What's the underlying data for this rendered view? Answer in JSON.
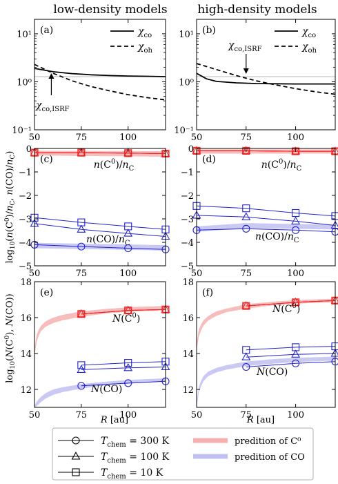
{
  "column_titles": [
    "low-density models",
    "high-density models"
  ],
  "legend": {
    "entries": [
      {
        "label": "T_chem = 300 K",
        "marker": "circle"
      },
      {
        "label": "T_chem = 100 K",
        "marker": "triangle"
      },
      {
        "label": "T_chem = 10 K",
        "marker": "square"
      },
      {
        "label": "predition of C⁰",
        "color": "#f4a7a7"
      },
      {
        "label": "predition of CO",
        "color": "#b9b9f0"
      }
    ]
  },
  "colors": {
    "red": "#ee2222",
    "blue": "#2222cc",
    "pred_red": "#f6b0b0",
    "pred_blue": "#c0c0f2"
  },
  "chart_data": [
    {
      "panel": "(a)",
      "type": "line",
      "yscale": "log",
      "xlim": [
        50,
        120
      ],
      "ylim": [
        0.1,
        20
      ],
      "xticks": [
        50,
        75,
        100
      ],
      "yticks": [
        0.1,
        1,
        10
      ],
      "ytick_labels": [
        "10⁻¹",
        "10⁰",
        "10¹"
      ],
      "series": [
        {
          "name": "χco",
          "style": "solid",
          "x": [
            50,
            60,
            70,
            80,
            90,
            100,
            110,
            120
          ],
          "y": [
            1.9,
            1.62,
            1.48,
            1.4,
            1.35,
            1.32,
            1.3,
            1.28
          ]
        },
        {
          "name": "χoh",
          "style": "dashed",
          "x": [
            50,
            60,
            70,
            80,
            90,
            100,
            110,
            120
          ],
          "y": [
            2.3,
            1.5,
            1.05,
            0.8,
            0.65,
            0.54,
            0.47,
            0.42
          ]
        }
      ],
      "reference_line": {
        "y": 1.28
      },
      "annotation": {
        "text": "χco,ISRF",
        "x": 59
      }
    },
    {
      "panel": "(b)",
      "type": "line",
      "yscale": "log",
      "xlim": [
        50,
        120
      ],
      "ylim": [
        0.1,
        20
      ],
      "xticks": [
        50,
        75,
        100
      ],
      "yticks": [
        0.1,
        1,
        10
      ],
      "ytick_labels": [
        "10⁻¹",
        "10⁰",
        "10¹"
      ],
      "series": [
        {
          "name": "χco",
          "style": "solid",
          "x": [
            50,
            55,
            60,
            70,
            80,
            90,
            100,
            110,
            120
          ],
          "y": [
            1.5,
            1.15,
            1.02,
            0.95,
            0.92,
            0.91,
            0.9,
            0.9,
            0.9
          ]
        },
        {
          "name": "χoh",
          "style": "dashed",
          "x": [
            50,
            60,
            70,
            80,
            90,
            100,
            110,
            120
          ],
          "y": [
            2.4,
            1.8,
            1.35,
            1.05,
            0.86,
            0.72,
            0.62,
            0.55
          ]
        }
      ],
      "reference_line": {
        "y": 1.28
      },
      "annotation": {
        "text": "χco,ISRF",
        "x": 75
      }
    },
    {
      "panel": "(c)",
      "type": "line",
      "xlim": [
        50,
        120
      ],
      "ylim": [
        -5,
        0
      ],
      "xticks": [
        50,
        75,
        100
      ],
      "yticks": [
        -5,
        -4,
        -3,
        -2,
        -1,
        0
      ],
      "ylabel": "log10(n(C⁰)/nC, n(CO)/nC)",
      "annotations": [
        "n(C⁰)/nC",
        "n(CO)/nC"
      ],
      "bands": [
        {
          "color": "red",
          "x": [
            50,
            120
          ],
          "lo": [
            -0.3,
            -0.35
          ],
          "hi": [
            -0.1,
            -0.12
          ]
        },
        {
          "color": "blue",
          "x": [
            50,
            120
          ],
          "lo": [
            -4.25,
            -4.35
          ],
          "hi": [
            -4.02,
            -4.12
          ]
        }
      ],
      "series": [
        {
          "name": "C⁰ 300 K",
          "color": "red",
          "marker": "circle",
          "x": [
            50,
            75,
            100,
            120
          ],
          "y": [
            -0.18,
            -0.18,
            -0.2,
            -0.22
          ]
        },
        {
          "name": "C⁰ 100 K",
          "color": "red",
          "marker": "triangle",
          "x": [
            50,
            75,
            100,
            120
          ],
          "y": [
            -0.18,
            -0.18,
            -0.2,
            -0.22
          ]
        },
        {
          "name": "C⁰ 10 K",
          "color": "red",
          "marker": "square",
          "x": [
            50,
            75,
            100,
            120
          ],
          "y": [
            -0.18,
            -0.18,
            -0.2,
            -0.22
          ]
        },
        {
          "name": "CO 300 K",
          "color": "blue",
          "marker": "circle",
          "x": [
            50,
            75,
            100,
            120
          ],
          "y": [
            -4.1,
            -4.18,
            -4.25,
            -4.3
          ]
        },
        {
          "name": "CO 100 K",
          "color": "blue",
          "marker": "triangle",
          "x": [
            50,
            75,
            100,
            120
          ],
          "y": [
            -3.2,
            -3.45,
            -3.62,
            -3.75
          ]
        },
        {
          "name": "CO 10 K",
          "color": "blue",
          "marker": "square",
          "x": [
            50,
            75,
            100,
            120
          ],
          "y": [
            -2.95,
            -3.15,
            -3.32,
            -3.45
          ]
        }
      ]
    },
    {
      "panel": "(d)",
      "type": "line",
      "xlim": [
        50,
        120
      ],
      "ylim": [
        -5,
        0
      ],
      "xticks": [
        50,
        75,
        100
      ],
      "yticks": [
        -5,
        -4,
        -3,
        -2,
        -1,
        0
      ],
      "annotations": [
        "n(C⁰)/nC",
        "n(CO)/nC"
      ],
      "bands": [
        {
          "color": "red",
          "x": [
            50,
            120
          ],
          "lo": [
            -0.22,
            -0.22
          ],
          "hi": [
            -0.04,
            -0.04
          ]
        },
        {
          "color": "blue",
          "x": [
            50,
            75,
            120
          ],
          "lo": [
            -3.55,
            -3.4,
            -3.45
          ],
          "hi": [
            -3.32,
            -3.18,
            -3.25
          ]
        }
      ],
      "series": [
        {
          "name": "C⁰ 300 K",
          "color": "red",
          "marker": "circle",
          "x": [
            50,
            75,
            100,
            120
          ],
          "y": [
            -0.1,
            -0.1,
            -0.12,
            -0.12
          ]
        },
        {
          "name": "C⁰ 100 K",
          "color": "red",
          "marker": "triangle",
          "x": [
            50,
            75,
            100,
            120
          ],
          "y": [
            -0.1,
            -0.1,
            -0.12,
            -0.12
          ]
        },
        {
          "name": "C⁰ 10 K",
          "color": "red",
          "marker": "square",
          "x": [
            50,
            75,
            100,
            120
          ],
          "y": [
            -0.1,
            -0.1,
            -0.12,
            -0.12
          ]
        },
        {
          "name": "CO 300 K",
          "color": "blue",
          "marker": "circle",
          "x": [
            50,
            75,
            100,
            120
          ],
          "y": [
            -3.48,
            -3.42,
            -3.48,
            -3.55
          ]
        },
        {
          "name": "CO 100 K",
          "color": "blue",
          "marker": "triangle",
          "x": [
            50,
            75,
            100,
            120
          ],
          "y": [
            -2.85,
            -2.92,
            -3.1,
            -3.28
          ]
        },
        {
          "name": "CO 10 K",
          "color": "blue",
          "marker": "square",
          "x": [
            50,
            75,
            100,
            120
          ],
          "y": [
            -2.45,
            -2.55,
            -2.75,
            -2.88
          ]
        }
      ]
    },
    {
      "panel": "(e)",
      "type": "line",
      "xlim": [
        50,
        120
      ],
      "ylim": [
        11,
        18
      ],
      "xticks": [
        50,
        75,
        100
      ],
      "yticks": [
        12,
        14,
        16,
        18
      ],
      "xlabel": "R [au]",
      "ylabel": "log10(N(C⁰), N(CO))",
      "annotations": [
        "N(C⁰)",
        "N(CO)"
      ],
      "bands": [
        {
          "color": "red",
          "x": [
            50,
            51,
            53,
            56,
            60,
            65,
            75,
            90,
            105,
            120
          ],
          "lo": [
            13.9,
            14.6,
            15.2,
            15.5,
            15.7,
            15.85,
            16.05,
            16.25,
            16.35,
            16.4
          ],
          "hi": [
            14.3,
            15.0,
            15.5,
            15.8,
            16.0,
            16.15,
            16.35,
            16.5,
            16.6,
            16.65
          ]
        },
        {
          "color": "blue",
          "x": [
            50,
            51,
            53,
            56,
            60,
            65,
            75,
            90,
            105,
            120
          ],
          "lo": [
            11.0,
            11.05,
            11.25,
            11.5,
            11.7,
            11.85,
            12.05,
            12.25,
            12.35,
            12.45
          ],
          "hi": [
            11.1,
            11.3,
            11.55,
            11.8,
            12.0,
            12.12,
            12.3,
            12.45,
            12.55,
            12.62
          ]
        }
      ],
      "series": [
        {
          "name": "C⁰ 300 K",
          "color": "red",
          "marker": "circle",
          "x": [
            75,
            100,
            120
          ],
          "y": [
            16.2,
            16.4,
            16.45
          ]
        },
        {
          "name": "C⁰ 100 K",
          "color": "red",
          "marker": "triangle",
          "x": [
            75,
            100,
            120
          ],
          "y": [
            16.2,
            16.4,
            16.45
          ]
        },
        {
          "name": "C⁰ 10 K",
          "color": "red",
          "marker": "square",
          "x": [
            75,
            100,
            120
          ],
          "y": [
            16.2,
            16.4,
            16.45
          ]
        },
        {
          "name": "CO 300 K",
          "color": "blue",
          "marker": "circle",
          "x": [
            75,
            100,
            120
          ],
          "y": [
            12.2,
            12.35,
            12.45
          ]
        },
        {
          "name": "CO 100 K",
          "color": "blue",
          "marker": "triangle",
          "x": [
            75,
            100,
            120
          ],
          "y": [
            13.1,
            13.2,
            13.25
          ]
        },
        {
          "name": "CO 10 K",
          "color": "blue",
          "marker": "square",
          "x": [
            75,
            100,
            120
          ],
          "y": [
            13.35,
            13.48,
            13.55
          ]
        }
      ]
    },
    {
      "panel": "(f)",
      "type": "line",
      "xlim": [
        50,
        120
      ],
      "ylim": [
        11,
        18
      ],
      "xticks": [
        50,
        75,
        100
      ],
      "yticks": [
        12,
        14,
        16,
        18
      ],
      "xlabel": "R [au]",
      "annotations": [
        "N(C⁰)",
        "N(CO)"
      ],
      "bands": [
        {
          "color": "red",
          "x": [
            50,
            51,
            53,
            56,
            60,
            65,
            75,
            90,
            105,
            120
          ],
          "lo": [
            14.2,
            14.9,
            15.5,
            15.85,
            16.1,
            16.3,
            16.5,
            16.7,
            16.8,
            16.85
          ],
          "hi": [
            14.6,
            15.3,
            15.8,
            16.1,
            16.35,
            16.5,
            16.75,
            16.9,
            17.0,
            17.05
          ]
        },
        {
          "color": "blue",
          "x": [
            50,
            51,
            53,
            56,
            60,
            65,
            75,
            90,
            105,
            120
          ],
          "lo": [
            11.0,
            11.8,
            12.4,
            12.75,
            12.95,
            13.1,
            13.3,
            13.45,
            13.55,
            13.6
          ],
          "hi": [
            11.2,
            12.1,
            12.7,
            13.0,
            13.2,
            13.35,
            13.55,
            13.7,
            13.78,
            13.82
          ]
        }
      ],
      "series": [
        {
          "name": "C⁰ 300 K",
          "color": "red",
          "marker": "circle",
          "x": [
            75,
            100,
            120
          ],
          "y": [
            16.65,
            16.85,
            16.95
          ]
        },
        {
          "name": "C⁰ 100 K",
          "color": "red",
          "marker": "triangle",
          "x": [
            75,
            100,
            120
          ],
          "y": [
            16.65,
            16.85,
            16.95
          ]
        },
        {
          "name": "C⁰ 10 K",
          "color": "red",
          "marker": "square",
          "x": [
            75,
            100,
            120
          ],
          "y": [
            16.65,
            16.85,
            16.95
          ]
        },
        {
          "name": "CO 300 K",
          "color": "blue",
          "marker": "circle",
          "x": [
            75,
            100,
            120
          ],
          "y": [
            13.25,
            13.45,
            13.55
          ]
        },
        {
          "name": "CO 100 K",
          "color": "blue",
          "marker": "triangle",
          "x": [
            75,
            100,
            120
          ],
          "y": [
            13.8,
            13.95,
            14.0
          ]
        },
        {
          "name": "CO 10 K",
          "color": "blue",
          "marker": "square",
          "x": [
            75,
            100,
            120
          ],
          "y": [
            14.2,
            14.35,
            14.4
          ]
        }
      ]
    }
  ]
}
